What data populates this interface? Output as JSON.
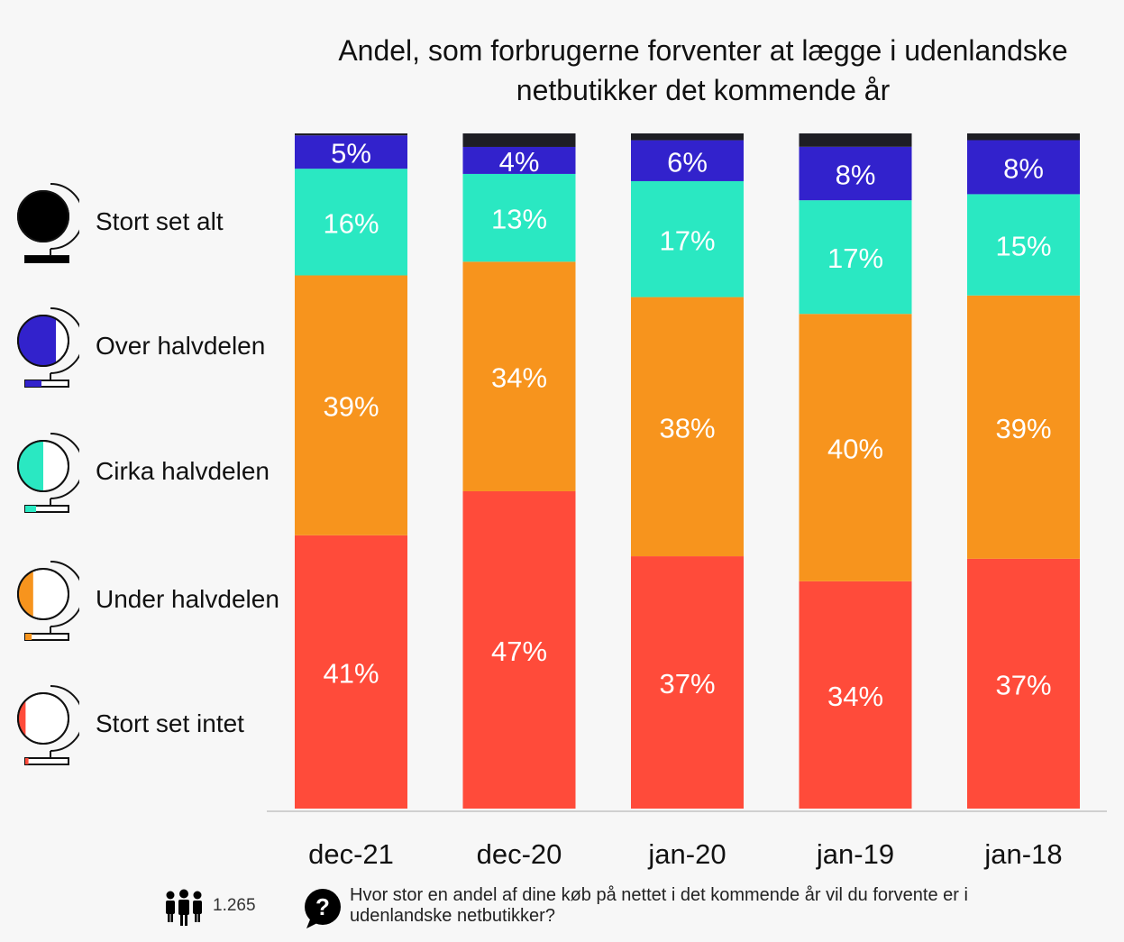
{
  "chart_data": {
    "type": "bar",
    "stacked": true,
    "title": "Andel, som forbrugerne forventer at lægge i udenlandske netbutikker det kommende år",
    "categories": [
      "dec-21",
      "dec-20",
      "jan-20",
      "jan-19",
      "jan-18"
    ],
    "series": [
      {
        "name": "Stort set intet",
        "color": "#ff4b3a",
        "values": [
          41,
          47,
          37,
          34,
          37
        ],
        "labels": [
          "41%",
          "47%",
          "37%",
          "34%",
          "37%"
        ]
      },
      {
        "name": "Under halvdelen",
        "color": "#f7941d",
        "values": [
          39,
          34,
          38,
          40,
          39
        ],
        "labels": [
          "39%",
          "34%",
          "38%",
          "40%",
          "39%"
        ]
      },
      {
        "name": "Cirka halvdelen",
        "color": "#2ae8c2",
        "values": [
          16,
          13,
          17,
          17,
          15
        ],
        "labels": [
          "16%",
          "13%",
          "17%",
          "17%",
          "15%"
        ]
      },
      {
        "name": "Over halvdelen",
        "color": "#3222cc",
        "values": [
          5,
          4,
          6,
          8,
          8
        ],
        "labels": [
          "5%",
          "4%",
          "6%",
          "8%",
          "8%"
        ]
      },
      {
        "name": "Stort set alt",
        "color": "#1e1e24",
        "values": [
          0.3,
          2,
          1,
          2,
          1
        ],
        "labels": [
          "",
          "",
          "",
          "",
          ""
        ]
      }
    ],
    "ylim": [
      0,
      100
    ],
    "legend_position": "left",
    "grid": false
  },
  "legend": [
    {
      "label": "Stort set alt",
      "color": "#000000"
    },
    {
      "label": "Over halvdelen",
      "color": "#3222cc"
    },
    {
      "label": "Cirka halvdelen",
      "color": "#2ae8c2"
    },
    {
      "label": "Under halvdelen",
      "color": "#f7941d"
    },
    {
      "label": "Stort set intet",
      "color": "#ff4b3a"
    }
  ],
  "footer": {
    "respondent_count": "1.265",
    "question": "Hvor stor en andel af dine køb på nettet i det kommende år vil du forvente er i udenlandske netbutikker?",
    "people_icon": "people-icon",
    "question_icon": "question-bubble-icon"
  }
}
